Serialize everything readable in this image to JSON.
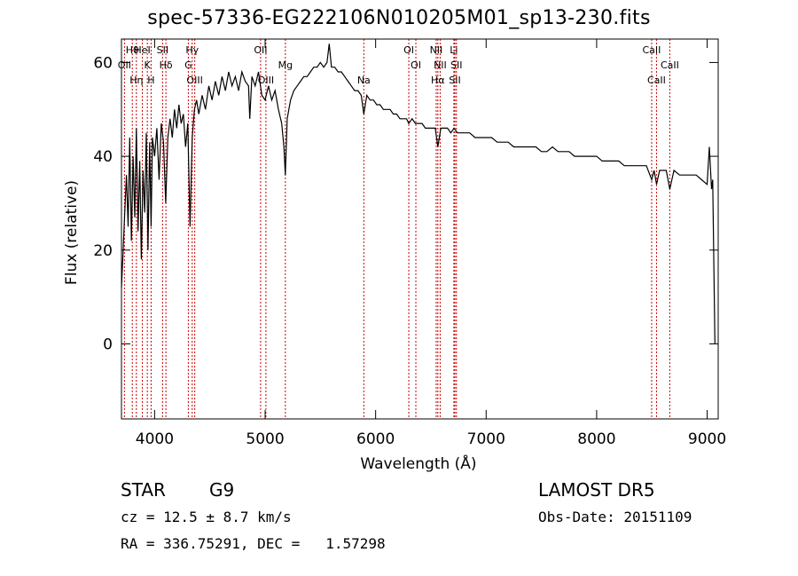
{
  "chart_data": {
    "type": "line",
    "title": "spec-57336-EG222106N010205M01_sp13-230.fits",
    "xlabel": "Wavelength (Å)",
    "ylabel": "Flux (relative)",
    "xlim": [
      3700,
      9100
    ],
    "ylim": [
      -16,
      65
    ],
    "xticks": [
      4000,
      5000,
      6000,
      7000,
      8000,
      9000
    ],
    "yticks": [
      0,
      20,
      40,
      60
    ],
    "grid": false,
    "series": [
      {
        "values": [
          [
            3700,
            12
          ],
          [
            3715,
            20
          ],
          [
            3730,
            28
          ],
          [
            3745,
            36
          ],
          [
            3760,
            25
          ],
          [
            3775,
            44
          ],
          [
            3790,
            22
          ],
          [
            3805,
            40
          ],
          [
            3820,
            27
          ],
          [
            3835,
            46
          ],
          [
            3850,
            24
          ],
          [
            3865,
            39
          ],
          [
            3880,
            18
          ],
          [
            3895,
            37
          ],
          [
            3910,
            28
          ],
          [
            3925,
            45
          ],
          [
            3940,
            20
          ],
          [
            3955,
            43
          ],
          [
            3968,
            25
          ],
          [
            3980,
            44
          ],
          [
            4000,
            40
          ],
          [
            4020,
            46
          ],
          [
            4040,
            35
          ],
          [
            4060,
            47
          ],
          [
            4080,
            43
          ],
          [
            4100,
            30
          ],
          [
            4120,
            44
          ],
          [
            4140,
            48
          ],
          [
            4160,
            44
          ],
          [
            4180,
            50
          ],
          [
            4200,
            46
          ],
          [
            4220,
            51
          ],
          [
            4240,
            47
          ],
          [
            4260,
            49
          ],
          [
            4280,
            42
          ],
          [
            4300,
            47
          ],
          [
            4320,
            25
          ],
          [
            4340,
            44
          ],
          [
            4360,
            50
          ],
          [
            4380,
            52
          ],
          [
            4400,
            49
          ],
          [
            4430,
            53
          ],
          [
            4460,
            50
          ],
          [
            4490,
            55
          ],
          [
            4520,
            52
          ],
          [
            4550,
            56
          ],
          [
            4580,
            53
          ],
          [
            4610,
            57
          ],
          [
            4640,
            54
          ],
          [
            4670,
            58
          ],
          [
            4700,
            55
          ],
          [
            4730,
            57
          ],
          [
            4760,
            54
          ],
          [
            4790,
            58
          ],
          [
            4820,
            56
          ],
          [
            4850,
            55
          ],
          [
            4861,
            48
          ],
          [
            4880,
            57
          ],
          [
            4910,
            55
          ],
          [
            4940,
            58
          ],
          [
            4970,
            53
          ],
          [
            5000,
            52
          ],
          [
            5030,
            55
          ],
          [
            5060,
            52
          ],
          [
            5090,
            54
          ],
          [
            5120,
            50
          ],
          [
            5150,
            47
          ],
          [
            5170,
            42
          ],
          [
            5183,
            36
          ],
          [
            5200,
            48
          ],
          [
            5230,
            52
          ],
          [
            5260,
            54
          ],
          [
            5290,
            55
          ],
          [
            5320,
            56
          ],
          [
            5350,
            57
          ],
          [
            5380,
            57
          ],
          [
            5410,
            58
          ],
          [
            5440,
            59
          ],
          [
            5470,
            59
          ],
          [
            5500,
            60
          ],
          [
            5530,
            59
          ],
          [
            5560,
            60
          ],
          [
            5580,
            64
          ],
          [
            5600,
            59
          ],
          [
            5630,
            59
          ],
          [
            5660,
            58
          ],
          [
            5690,
            58
          ],
          [
            5720,
            57
          ],
          [
            5750,
            56
          ],
          [
            5780,
            55
          ],
          [
            5810,
            54
          ],
          [
            5840,
            54
          ],
          [
            5870,
            53
          ],
          [
            5893,
            49
          ],
          [
            5920,
            53
          ],
          [
            5950,
            52
          ],
          [
            5980,
            52
          ],
          [
            6010,
            51
          ],
          [
            6040,
            51
          ],
          [
            6070,
            50
          ],
          [
            6100,
            50
          ],
          [
            6130,
            50
          ],
          [
            6160,
            49
          ],
          [
            6190,
            49
          ],
          [
            6220,
            48
          ],
          [
            6250,
            48
          ],
          [
            6280,
            48
          ],
          [
            6300,
            47
          ],
          [
            6330,
            48
          ],
          [
            6360,
            47
          ],
          [
            6390,
            47
          ],
          [
            6420,
            47
          ],
          [
            6450,
            46
          ],
          [
            6480,
            46
          ],
          [
            6510,
            46
          ],
          [
            6540,
            46
          ],
          [
            6563,
            42
          ],
          [
            6590,
            46
          ],
          [
            6620,
            46
          ],
          [
            6650,
            46
          ],
          [
            6680,
            45
          ],
          [
            6710,
            46
          ],
          [
            6740,
            45
          ],
          [
            6770,
            45
          ],
          [
            6800,
            45
          ],
          [
            6850,
            45
          ],
          [
            6900,
            44
          ],
          [
            6950,
            44
          ],
          [
            7000,
            44
          ],
          [
            7050,
            44
          ],
          [
            7100,
            43
          ],
          [
            7150,
            43
          ],
          [
            7200,
            43
          ],
          [
            7250,
            42
          ],
          [
            7300,
            42
          ],
          [
            7350,
            42
          ],
          [
            7400,
            42
          ],
          [
            7450,
            42
          ],
          [
            7500,
            41
          ],
          [
            7550,
            41
          ],
          [
            7600,
            42
          ],
          [
            7650,
            41
          ],
          [
            7700,
            41
          ],
          [
            7750,
            41
          ],
          [
            7800,
            40
          ],
          [
            7850,
            40
          ],
          [
            7900,
            40
          ],
          [
            7950,
            40
          ],
          [
            8000,
            40
          ],
          [
            8050,
            39
          ],
          [
            8100,
            39
          ],
          [
            8150,
            39
          ],
          [
            8200,
            39
          ],
          [
            8250,
            38
          ],
          [
            8300,
            38
          ],
          [
            8350,
            38
          ],
          [
            8400,
            38
          ],
          [
            8450,
            38
          ],
          [
            8498,
            35
          ],
          [
            8520,
            37
          ],
          [
            8542,
            34
          ],
          [
            8570,
            37
          ],
          [
            8600,
            37
          ],
          [
            8630,
            37
          ],
          [
            8662,
            33
          ],
          [
            8700,
            37
          ],
          [
            8750,
            36
          ],
          [
            8800,
            36
          ],
          [
            8850,
            36
          ],
          [
            8900,
            36
          ],
          [
            8950,
            35
          ],
          [
            9000,
            34
          ],
          [
            9020,
            42
          ],
          [
            9040,
            33
          ],
          [
            9050,
            35
          ],
          [
            9070,
            0
          ]
        ]
      }
    ],
    "line_color": "#000000",
    "marker_color": "#cc0000",
    "line_markers": [
      {
        "label": "Hθ",
        "wavelength": 3798
      },
      {
        "label": "OII",
        "wavelength": 3727
      },
      {
        "label": "Hη",
        "wavelength": 3835
      },
      {
        "label": "HeI",
        "wavelength": 3889
      },
      {
        "label": "K",
        "wavelength": 3934
      },
      {
        "label": "H",
        "wavelength": 3968
      },
      {
        "label": "SII",
        "wavelength": 4072
      },
      {
        "label": "Hδ",
        "wavelength": 4102
      },
      {
        "label": "OIII",
        "wavelength": 4363
      },
      {
        "label": "Hγ",
        "wavelength": 4340
      },
      {
        "label": "G",
        "wavelength": 4305
      },
      {
        "label": "OIII",
        "wavelength": 5007
      },
      {
        "label": "OII",
        "wavelength": 4959
      },
      {
        "label": "Mg",
        "wavelength": 5183
      },
      {
        "label": "Na",
        "wavelength": 5893
      },
      {
        "label": "OI",
        "wavelength": 6300
      },
      {
        "label": "OI",
        "wavelength": 6364
      },
      {
        "label": "Hα",
        "wavelength": 6563
      },
      {
        "label": "NII",
        "wavelength": 6548
      },
      {
        "label": "NII",
        "wavelength": 6584
      },
      {
        "label": "SII",
        "wavelength": 6717
      },
      {
        "label": "Li",
        "wavelength": 6708
      },
      {
        "label": "SII",
        "wavelength": 6731
      },
      {
        "label": "CaII",
        "wavelength": 8542
      },
      {
        "label": "CaII",
        "wavelength": 8498
      },
      {
        "label": "CaII",
        "wavelength": 8662
      }
    ]
  },
  "info": {
    "class": "STAR",
    "subclass": "G9",
    "survey": "LAMOST DR5",
    "cz": "cz = 12.5 ± 8.7 km/s",
    "obs_date": "Obs-Date: 20151109",
    "coords": "RA = 336.75291, DEC =   1.57298"
  }
}
